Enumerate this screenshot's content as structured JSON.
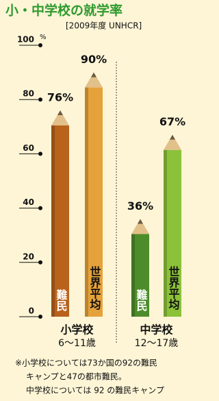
{
  "chart_data": {
    "type": "pencil-bar",
    "title": "小・中学校の就学率",
    "subtitle": "[2009年度 UNHCR]",
    "y_unit": "%",
    "categories": [
      "小学校",
      "中学校"
    ],
    "category_sublabels": [
      "6〜11歳",
      "12〜17歳"
    ],
    "series": [
      {
        "name": "難民",
        "colors": [
          "#b8621c",
          "#4d8c2a"
        ],
        "values": [
          76,
          36
        ],
        "value_labels": [
          "76%",
          "36%"
        ]
      },
      {
        "name": "世界平均",
        "colors": [
          "#e6a23a",
          "#8cc13a"
        ],
        "values": [
          90,
          67
        ],
        "value_labels": [
          "90%",
          "67%"
        ]
      }
    ],
    "ylim": [
      0,
      100
    ],
    "yticks": [
      0,
      20,
      40,
      60,
      80,
      100
    ],
    "notes": [
      "※小学校については73か国の92の難民",
      "キャンプと47の都市難民。",
      "中学校については 92 の難民キャンプ"
    ]
  }
}
